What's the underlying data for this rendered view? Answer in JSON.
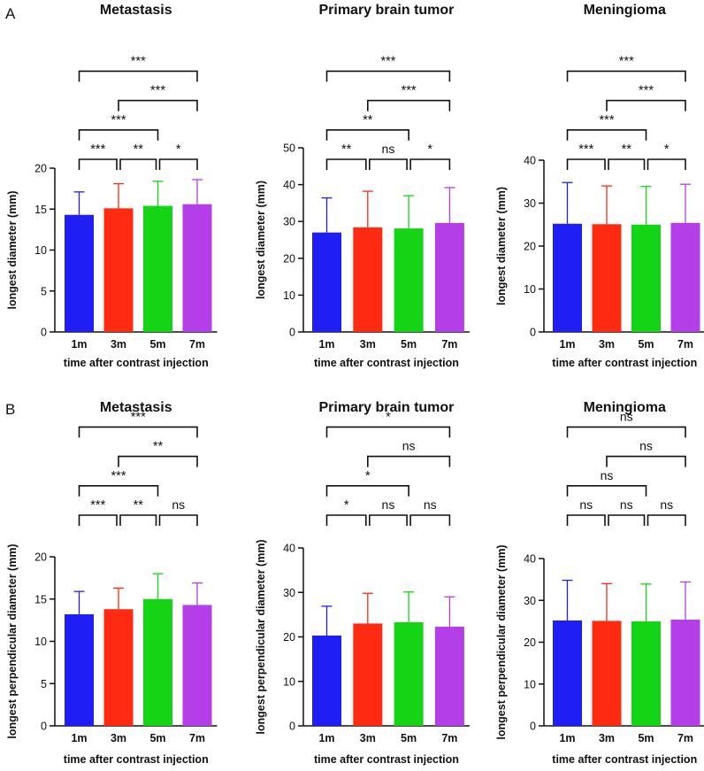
{
  "panels": [
    {
      "letter": "A",
      "row": 0
    },
    {
      "letter": "B",
      "row": 1
    }
  ],
  "colors": {
    "1m": "#1f1ff5",
    "3m": "#ff2a12",
    "5m": "#15d415",
    "7m": "#b43ee8"
  },
  "chart_data": [
    {
      "type": "bar",
      "row": 0,
      "col": 0,
      "title": "Metastasis",
      "xlabel": "time after contrast injection",
      "ylabel": "longest diameter (mm)",
      "categories": [
        "1m",
        "3m",
        "5m",
        "7m"
      ],
      "values": [
        14.3,
        15.1,
        15.4,
        15.6
      ],
      "errors": [
        2.8,
        3.0,
        3.0,
        3.0
      ],
      "ylim": [
        0,
        20
      ],
      "yticks": [
        0,
        5,
        10,
        15,
        20
      ],
      "comparisons": [
        {
          "pair": [
            0,
            1
          ],
          "label": "***"
        },
        {
          "pair": [
            1,
            2
          ],
          "label": "**"
        },
        {
          "pair": [
            2,
            3
          ],
          "label": "*"
        },
        {
          "pair": [
            0,
            2
          ],
          "label": "***"
        },
        {
          "pair": [
            1,
            3
          ],
          "label": "***"
        },
        {
          "pair": [
            0,
            3
          ],
          "label": "***"
        }
      ]
    },
    {
      "type": "bar",
      "row": 0,
      "col": 1,
      "title": "Primary brain tumor",
      "xlabel": "time after contrast injection",
      "ylabel": "longest diameter (mm)",
      "categories": [
        "1m",
        "3m",
        "5m",
        "7m"
      ],
      "values": [
        27.0,
        28.4,
        28.1,
        29.6
      ],
      "errors": [
        9.4,
        9.8,
        8.9,
        9.6
      ],
      "ylim": [
        0,
        50
      ],
      "yticks": [
        0,
        10,
        20,
        30,
        40,
        50
      ],
      "comparisons": [
        {
          "pair": [
            0,
            1
          ],
          "label": "**"
        },
        {
          "pair": [
            1,
            2
          ],
          "label": "ns"
        },
        {
          "pair": [
            2,
            3
          ],
          "label": "*"
        },
        {
          "pair": [
            0,
            2
          ],
          "label": "**"
        },
        {
          "pair": [
            1,
            3
          ],
          "label": "***"
        },
        {
          "pair": [
            0,
            3
          ],
          "label": "***"
        }
      ]
    },
    {
      "type": "bar",
      "row": 0,
      "col": 2,
      "title": "Meningioma",
      "xlabel": "time after contrast injection",
      "ylabel": "longest diameter (mm)",
      "categories": [
        "1m",
        "3m",
        "5m",
        "7m"
      ],
      "values": [
        25.2,
        25.1,
        25.0,
        25.4
      ],
      "errors": [
        9.6,
        8.9,
        8.9,
        9.0
      ],
      "ylim": [
        0,
        40
      ],
      "yticks": [
        0,
        10,
        20,
        30,
        40
      ],
      "comparisons": [
        {
          "pair": [
            0,
            1
          ],
          "label": "***"
        },
        {
          "pair": [
            1,
            2
          ],
          "label": "**"
        },
        {
          "pair": [
            2,
            3
          ],
          "label": "*"
        },
        {
          "pair": [
            0,
            2
          ],
          "label": "***"
        },
        {
          "pair": [
            1,
            3
          ],
          "label": "***"
        },
        {
          "pair": [
            0,
            3
          ],
          "label": "***"
        }
      ]
    },
    {
      "type": "bar",
      "row": 1,
      "col": 0,
      "title": "Metastasis",
      "xlabel": "time after contrast injection",
      "ylabel": "longest perpendicular diameter (mm)",
      "categories": [
        "1m",
        "3m",
        "5m",
        "7m"
      ],
      "values": [
        13.2,
        13.8,
        15.0,
        14.3
      ],
      "errors": [
        2.7,
        2.5,
        3.0,
        2.6
      ],
      "ylim": [
        0,
        20
      ],
      "yticks": [
        0,
        5,
        10,
        15,
        20
      ],
      "comparisons": [
        {
          "pair": [
            0,
            1
          ],
          "label": "***"
        },
        {
          "pair": [
            1,
            2
          ],
          "label": "**"
        },
        {
          "pair": [
            2,
            3
          ],
          "label": "ns"
        },
        {
          "pair": [
            0,
            2
          ],
          "label": "***"
        },
        {
          "pair": [
            1,
            3
          ],
          "label": "**"
        },
        {
          "pair": [
            0,
            3
          ],
          "label": "***"
        }
      ]
    },
    {
      "type": "bar",
      "row": 1,
      "col": 1,
      "title": "Primary brain tumor",
      "xlabel": "time after contrast injection",
      "ylabel": "longest perpendicular diameter (mm)",
      "categories": [
        "1m",
        "3m",
        "5m",
        "7m"
      ],
      "values": [
        20.3,
        23.0,
        23.3,
        22.3
      ],
      "errors": [
        6.6,
        6.8,
        6.8,
        6.7
      ],
      "ylim": [
        0,
        40
      ],
      "yticks": [
        0,
        10,
        20,
        30,
        40
      ],
      "comparisons": [
        {
          "pair": [
            0,
            1
          ],
          "label": "*"
        },
        {
          "pair": [
            1,
            2
          ],
          "label": "ns"
        },
        {
          "pair": [
            2,
            3
          ],
          "label": "ns"
        },
        {
          "pair": [
            0,
            2
          ],
          "label": "*"
        },
        {
          "pair": [
            1,
            3
          ],
          "label": "ns"
        },
        {
          "pair": [
            0,
            3
          ],
          "label": "*"
        }
      ]
    },
    {
      "type": "bar",
      "row": 1,
      "col": 2,
      "title": "Meningioma",
      "xlabel": "time after contrast injection",
      "ylabel": "longest perpendicular diameter (mm)",
      "categories": [
        "1m",
        "3m",
        "5m",
        "7m"
      ],
      "values": [
        25.2,
        25.1,
        25.0,
        25.4
      ],
      "errors": [
        9.6,
        8.9,
        8.9,
        9.0
      ],
      "ylim": [
        0,
        40
      ],
      "yticks": [
        0,
        10,
        20,
        30,
        40
      ],
      "comparisons": [
        {
          "pair": [
            0,
            1
          ],
          "label": "ns"
        },
        {
          "pair": [
            1,
            2
          ],
          "label": "ns"
        },
        {
          "pair": [
            2,
            3
          ],
          "label": "ns"
        },
        {
          "pair": [
            0,
            2
          ],
          "label": "ns"
        },
        {
          "pair": [
            1,
            3
          ],
          "label": "ns"
        },
        {
          "pair": [
            0,
            3
          ],
          "label": "ns"
        }
      ]
    }
  ]
}
